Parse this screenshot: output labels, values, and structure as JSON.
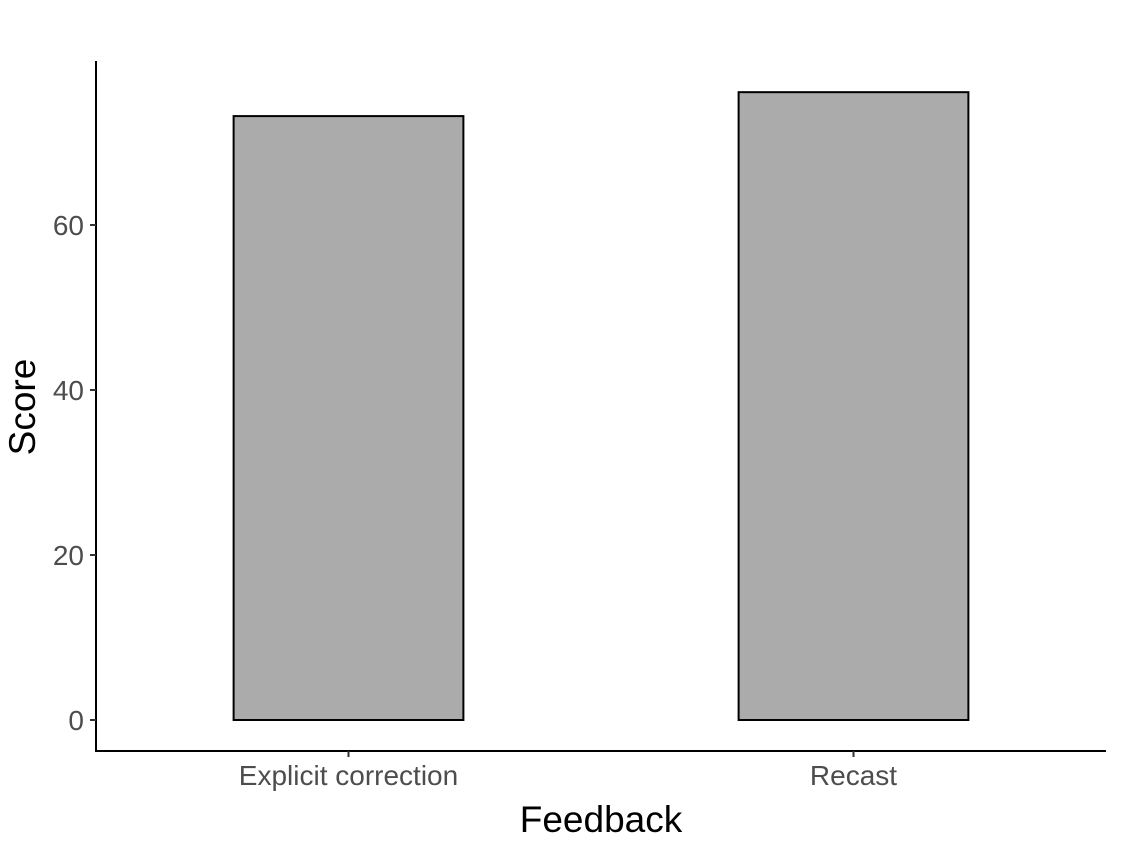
{
  "chart_data": {
    "type": "bar",
    "title": "",
    "xlabel": "Feedback",
    "ylabel": "Score",
    "categories": [
      "Explicit correction",
      "Recast"
    ],
    "values": [
      73.2,
      76.1
    ],
    "ylim": [
      0,
      76.1
    ],
    "yticks": [
      0,
      20,
      40,
      60
    ],
    "grid": false,
    "legend": "none",
    "colors": {
      "bar_fill": "#ababab",
      "bar_stroke": "#000000",
      "axis": "#000000",
      "tick_label": "#4d4d4d"
    }
  }
}
